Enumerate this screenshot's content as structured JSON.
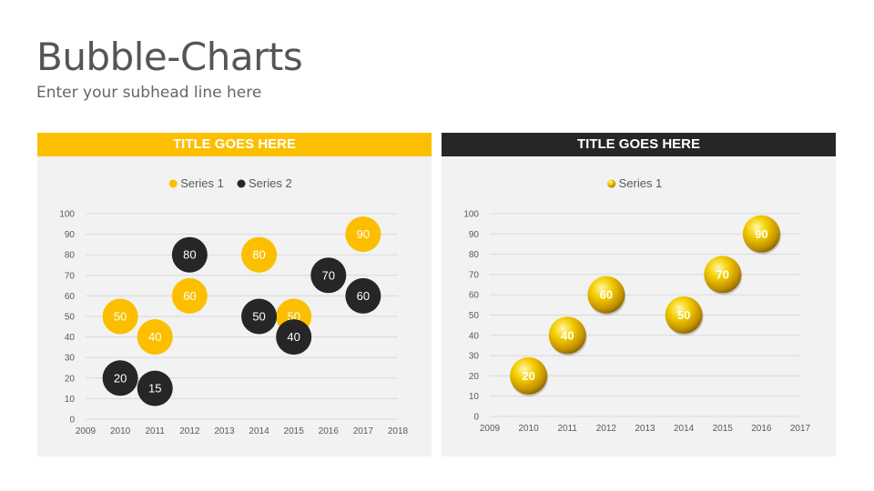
{
  "page": {
    "title": "Bubble-Charts",
    "subtitle": "Enter your subhead line here"
  },
  "colors": {
    "yellow": "#fbbf00",
    "dark": "#262626",
    "panel_bg": "#f2f2f2",
    "gridline": "#d9d9d9"
  },
  "chart_data": [
    {
      "type": "bubble",
      "title": "TITLE GOES HERE",
      "header_color": "#fbbf00",
      "legend_position": "top",
      "grid": true,
      "xlim": [
        2009,
        2018
      ],
      "ylim": [
        0,
        100
      ],
      "x_ticks": [
        2009,
        2010,
        2011,
        2012,
        2013,
        2014,
        2015,
        2016,
        2017,
        2018
      ],
      "y_ticks": [
        0,
        10,
        20,
        30,
        40,
        50,
        60,
        70,
        80,
        90,
        100
      ],
      "series": [
        {
          "name": "Series 1",
          "color": "#fbbf00",
          "style": "flat",
          "points": [
            {
              "x": 2010,
              "y": 50,
              "label": "50"
            },
            {
              "x": 2011,
              "y": 40,
              "label": "40"
            },
            {
              "x": 2012,
              "y": 60,
              "label": "60"
            },
            {
              "x": 2014,
              "y": 80,
              "label": "80"
            },
            {
              "x": 2015,
              "y": 50,
              "label": "50"
            },
            {
              "x": 2017,
              "y": 90,
              "label": "90"
            }
          ]
        },
        {
          "name": "Series 2",
          "color": "#262626",
          "style": "flat",
          "points": [
            {
              "x": 2010,
              "y": 20,
              "label": "20"
            },
            {
              "x": 2011,
              "y": 15,
              "label": "15"
            },
            {
              "x": 2012,
              "y": 80,
              "label": "80"
            },
            {
              "x": 2014,
              "y": 50,
              "label": "50"
            },
            {
              "x": 2015,
              "y": 40,
              "label": "40"
            },
            {
              "x": 2016,
              "y": 70,
              "label": "70"
            },
            {
              "x": 2017,
              "y": 60,
              "label": "60"
            }
          ]
        }
      ]
    },
    {
      "type": "bubble",
      "title": "TITLE GOES HERE",
      "header_color": "#262626",
      "legend_position": "top",
      "grid": true,
      "xlim": [
        2009,
        2017
      ],
      "ylim": [
        0,
        100
      ],
      "x_ticks": [
        2009,
        2010,
        2011,
        2012,
        2013,
        2014,
        2015,
        2016,
        2017
      ],
      "y_ticks": [
        0,
        10,
        20,
        30,
        40,
        50,
        60,
        70,
        80,
        90,
        100
      ],
      "series": [
        {
          "name": "Series 1",
          "color": "#e6b800",
          "style": "3d-gold",
          "points": [
            {
              "x": 2010,
              "y": 20,
              "label": "20"
            },
            {
              "x": 2011,
              "y": 40,
              "label": "40"
            },
            {
              "x": 2012,
              "y": 60,
              "label": "60"
            },
            {
              "x": 2014,
              "y": 50,
              "label": "50"
            },
            {
              "x": 2015,
              "y": 70,
              "label": "70"
            },
            {
              "x": 2016,
              "y": 90,
              "label": "90"
            }
          ]
        }
      ]
    }
  ]
}
